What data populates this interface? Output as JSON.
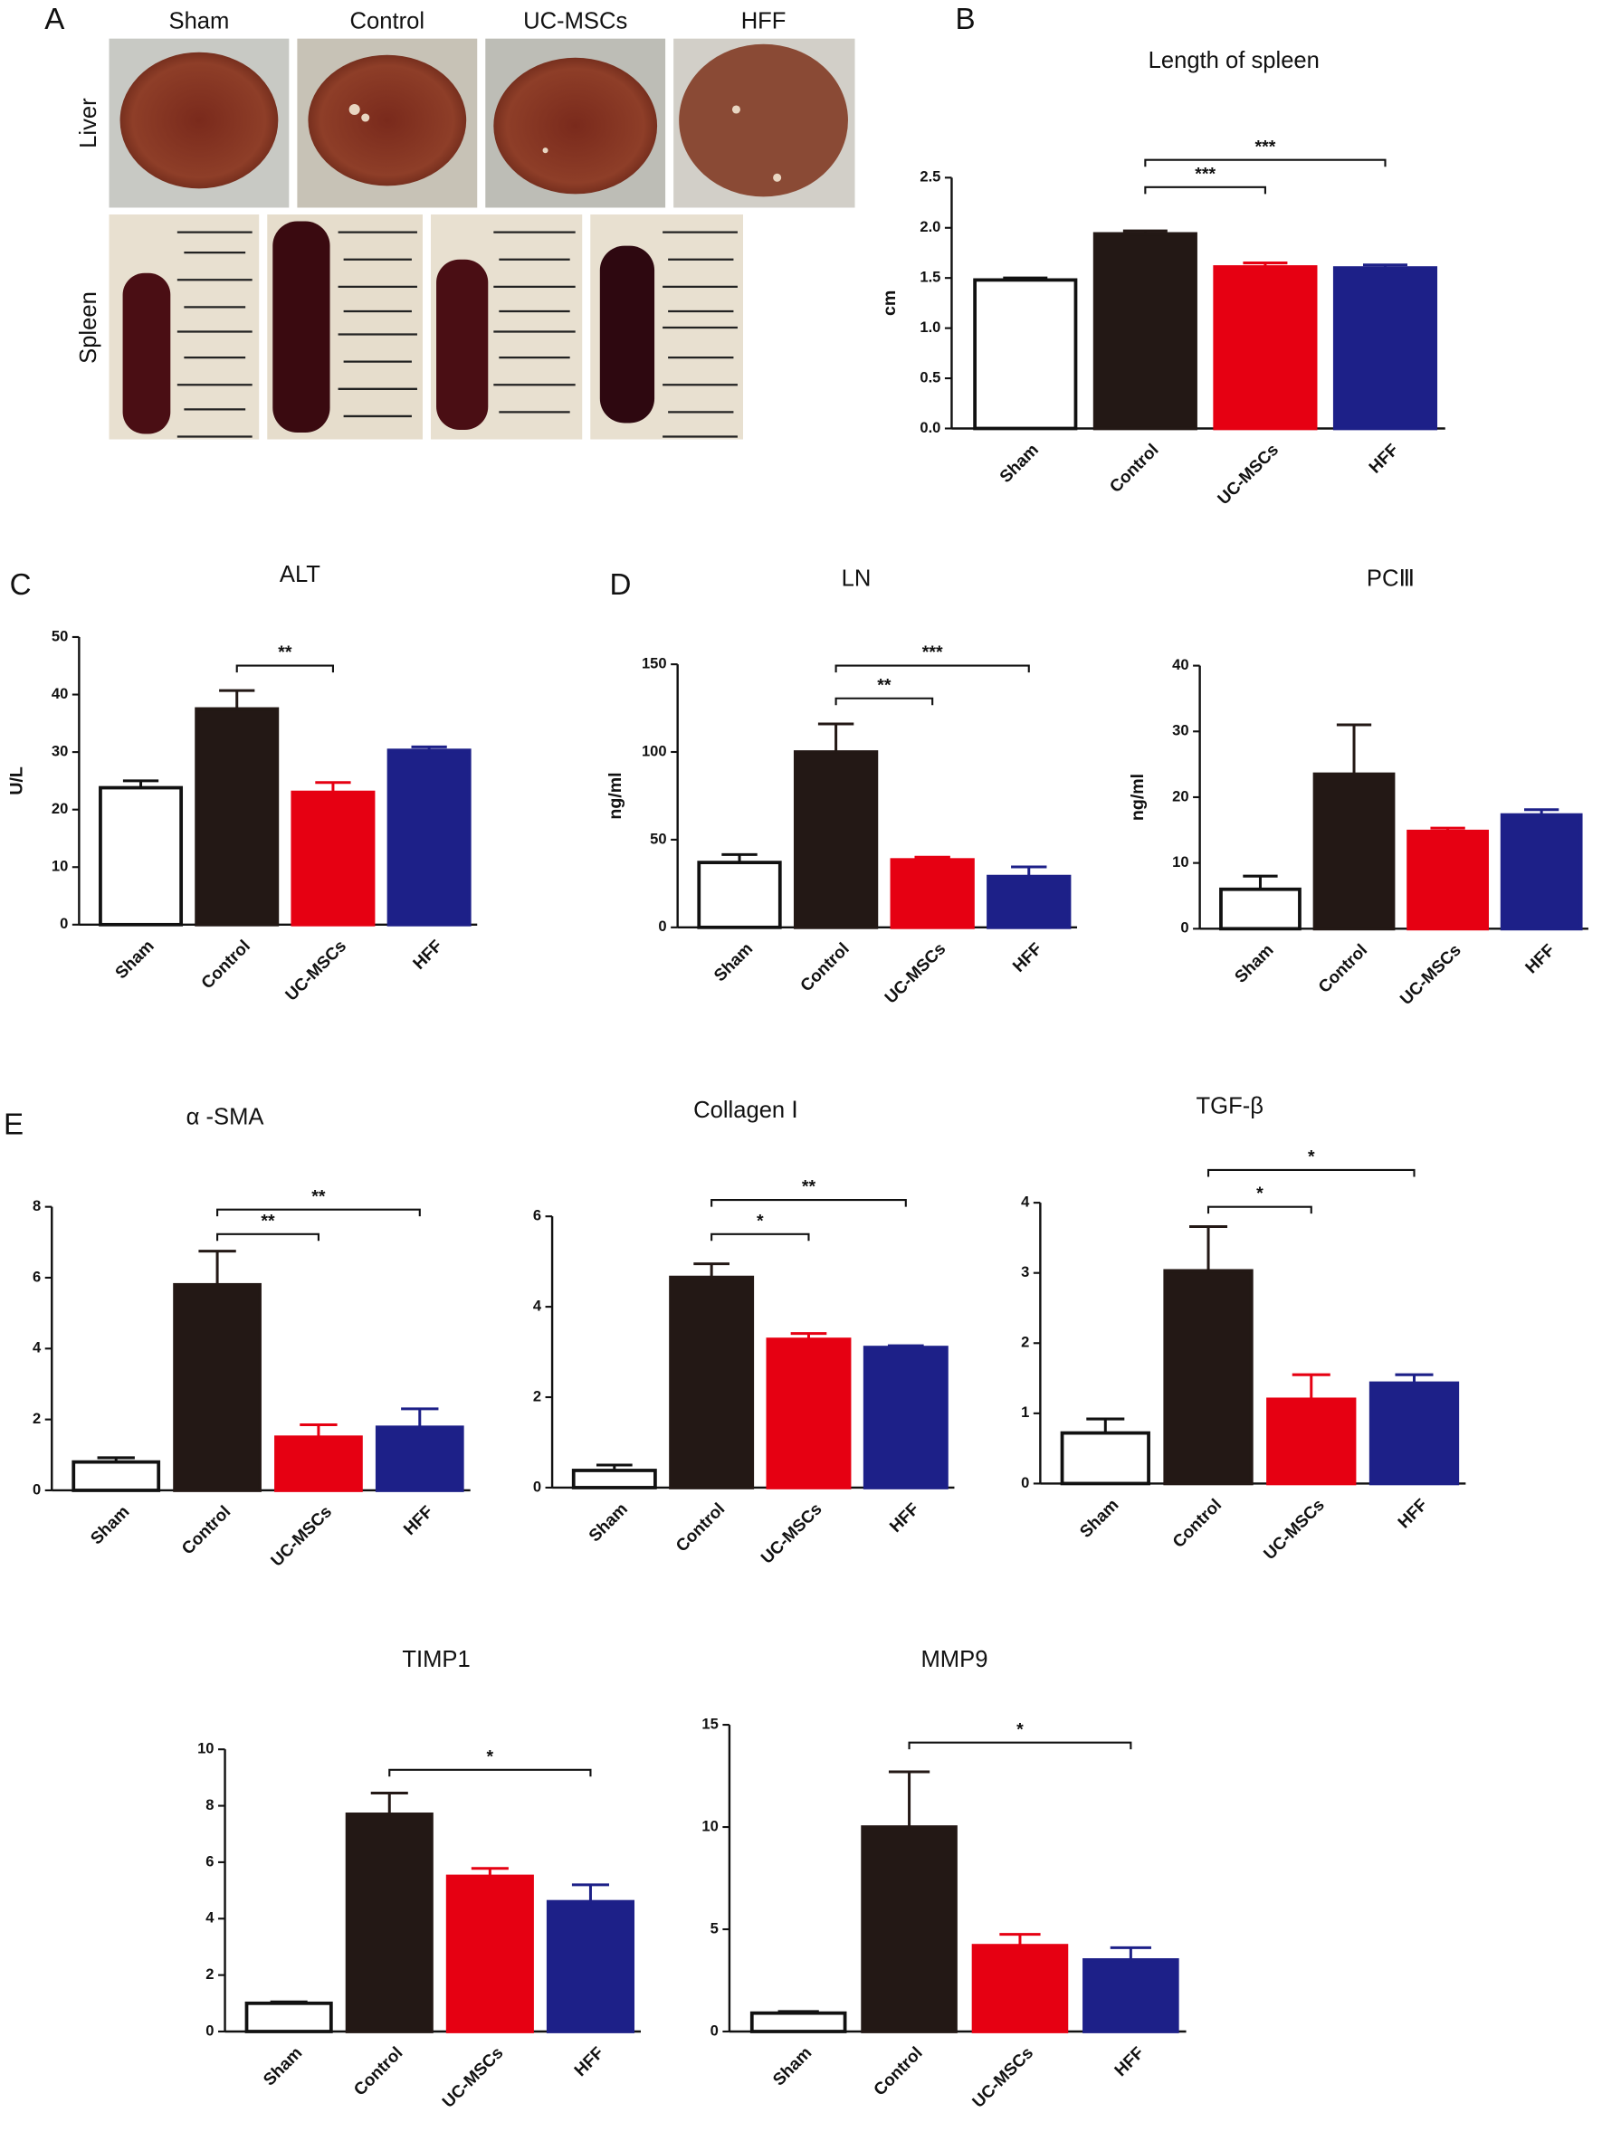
{
  "panel_a": {
    "label": "A",
    "columns": [
      "Sham",
      "Control",
      "UC-MSCs",
      "HFF"
    ],
    "rows": [
      "Liver",
      "Spleen"
    ]
  },
  "chart_data": [
    {
      "type": "bar",
      "panel": "B",
      "title": "Length of spleen",
      "ylabel": "cm",
      "categories": [
        "Sham",
        "Control",
        "UC-MSCs",
        "HFF"
      ],
      "values": [
        1.48,
        1.94,
        1.61,
        1.6
      ],
      "errors": [
        0.02,
        0.03,
        0.04,
        0.03
      ],
      "colors": [
        "#ffffff",
        "#231815",
        "#e60012",
        "#1d2088"
      ],
      "ylim": [
        0,
        2.5
      ],
      "yticks": [
        {
          "value": 0,
          "label": "0.0"
        },
        0.5,
        {
          "value": 1,
          "label": "1.0"
        },
        1.5,
        {
          "value": 2,
          "label": "2.0"
        },
        2.5
      ],
      "annotations": [
        {
          "between": [
            1,
            2
          ],
          "label": "***"
        },
        {
          "between": [
            1,
            3
          ],
          "label": "***"
        }
      ]
    },
    {
      "type": "bar",
      "panel": "C",
      "title": "ALT",
      "ylabel": "U/L",
      "categories": [
        "Sham",
        "Control",
        "UC-MSCs",
        "HFF"
      ],
      "values": [
        23.8,
        37.5,
        23,
        30.3
      ],
      "errors": [
        1.2,
        3.2,
        1.7,
        0.6
      ],
      "colors": [
        "#ffffff",
        "#231815",
        "#e60012",
        "#1d2088"
      ],
      "ylim": [
        0,
        50
      ],
      "yticks": [
        0,
        10,
        20,
        30,
        40,
        50
      ],
      "annotations": [
        {
          "between": [
            1,
            2
          ],
          "label": "**"
        }
      ]
    },
    {
      "type": "bar",
      "panel": "D",
      "title": "LN",
      "ylabel": "ng/ml",
      "categories": [
        "Sham",
        "Control",
        "UC-MSCs",
        "HFF"
      ],
      "values": [
        37,
        100,
        38.5,
        29
      ],
      "errors": [
        4.5,
        16,
        1.5,
        5.5
      ],
      "colors": [
        "#ffffff",
        "#231815",
        "#e60012",
        "#1d2088"
      ],
      "ylim": [
        0,
        150
      ],
      "yticks": [
        0,
        50,
        100,
        150
      ],
      "annotations": [
        {
          "between": [
            1,
            2
          ],
          "label": "**"
        },
        {
          "between": [
            1,
            3
          ],
          "label": "***"
        }
      ]
    },
    {
      "type": "bar",
      "title": "PCⅢ",
      "ylabel": "ng/ml",
      "categories": [
        "Sham",
        "Control",
        "UC-MSCs",
        "HFF"
      ],
      "values": [
        6,
        23.5,
        14.8,
        17.3
      ],
      "errors": [
        2,
        7.5,
        0.5,
        0.8
      ],
      "colors": [
        "#ffffff",
        "#231815",
        "#e60012",
        "#1d2088"
      ],
      "ylim": [
        0,
        40
      ],
      "yticks": [
        0,
        10,
        20,
        30,
        40
      ],
      "annotations": []
    },
    {
      "type": "bar",
      "panel": "E",
      "title": "α -SMA",
      "categories": [
        "Sham",
        "Control",
        "UC-MSCs",
        "HFF"
      ],
      "values": [
        0.8,
        5.8,
        1.5,
        1.78
      ],
      "errors": [
        0.12,
        0.95,
        0.35,
        0.52
      ],
      "colors": [
        "#ffffff",
        "#231815",
        "#e60012",
        "#1d2088"
      ],
      "ylim": [
        0,
        8
      ],
      "yticks": [
        0,
        2,
        4,
        6,
        8
      ],
      "annotations": [
        {
          "between": [
            1,
            2
          ],
          "label": "**"
        },
        {
          "between": [
            1,
            3
          ],
          "label": "**"
        }
      ]
    },
    {
      "type": "bar",
      "title": "Collagen Ⅰ",
      "categories": [
        "Sham",
        "Control",
        "UC-MSCs",
        "HFF"
      ],
      "values": [
        0.38,
        4.65,
        3.28,
        3.1
      ],
      "errors": [
        0.12,
        0.3,
        0.13,
        0.04
      ],
      "colors": [
        "#ffffff",
        "#231815",
        "#e60012",
        "#1d2088"
      ],
      "ylim": [
        0,
        6
      ],
      "yticks": [
        0,
        2,
        4,
        6
      ],
      "annotations": [
        {
          "between": [
            1,
            2
          ],
          "label": "*"
        },
        {
          "between": [
            1,
            3
          ],
          "label": "**"
        }
      ]
    },
    {
      "type": "bar",
      "title": "TGF-β",
      "categories": [
        "Sham",
        "Control",
        "UC-MSCs",
        "HFF"
      ],
      "values": [
        0.72,
        3.03,
        1.2,
        1.43
      ],
      "errors": [
        0.2,
        0.63,
        0.35,
        0.12
      ],
      "colors": [
        "#ffffff",
        "#231815",
        "#e60012",
        "#1d2088"
      ],
      "ylim": [
        0,
        4
      ],
      "yticks": [
        0,
        1,
        2,
        3,
        4
      ],
      "annotations": [
        {
          "between": [
            1,
            2
          ],
          "label": "*"
        },
        {
          "between": [
            1,
            3
          ],
          "label": "*"
        }
      ]
    },
    {
      "type": "bar",
      "title": "TIMP1",
      "categories": [
        "Sham",
        "Control",
        "UC-MSCs",
        "HFF"
      ],
      "values": [
        1,
        7.7,
        5.5,
        4.6
      ],
      "errors": [
        0.05,
        0.75,
        0.28,
        0.6
      ],
      "colors": [
        "#ffffff",
        "#231815",
        "#e60012",
        "#1d2088"
      ],
      "ylim": [
        0,
        10
      ],
      "yticks": [
        0,
        2,
        4,
        6,
        8,
        10
      ],
      "annotations": [
        {
          "between": [
            1,
            3
          ],
          "label": "*"
        }
      ]
    },
    {
      "type": "bar",
      "title": "MMP9",
      "categories": [
        "Sham",
        "Control",
        "UC-MSCs",
        "HFF"
      ],
      "values": [
        0.9,
        10,
        4.2,
        3.5
      ],
      "errors": [
        0.08,
        2.7,
        0.55,
        0.6
      ],
      "colors": [
        "#ffffff",
        "#231815",
        "#e60012",
        "#1d2088"
      ],
      "ylim": [
        0,
        15
      ],
      "yticks": [
        0,
        5,
        10,
        15
      ],
      "annotations": [
        {
          "between": [
            1,
            3
          ],
          "label": "*"
        }
      ]
    }
  ]
}
